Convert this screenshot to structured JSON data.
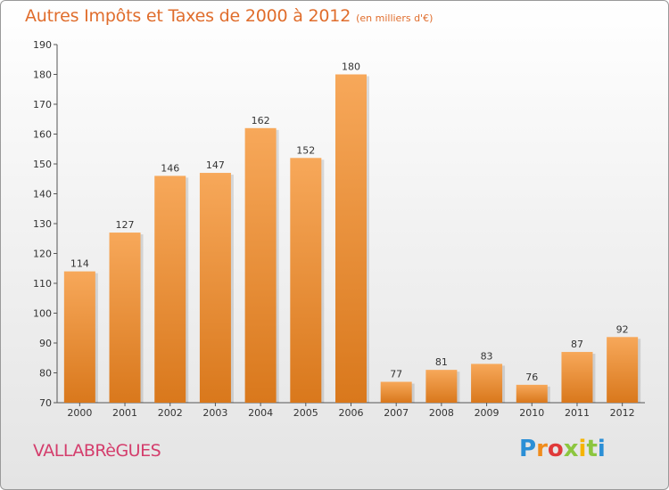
{
  "title": "Autres Impôts et Taxes de 2000 à 2012",
  "subtitle": "(en milliers d'€)",
  "commune": "VALLABRèGUES",
  "logo": {
    "letters": [
      "P",
      "r",
      "o",
      "x",
      "i",
      "t",
      "i"
    ],
    "colors": [
      "#2b8fd6",
      "#f08c1c",
      "#e03a3a",
      "#8cc63f",
      "#f5b400",
      "#8cc63f",
      "#2b8fd6"
    ]
  },
  "colors": {
    "bar_light": "#f7a85a",
    "bar_dark": "#d9781c",
    "accent": "#e06d2c"
  },
  "chart_data": {
    "type": "bar",
    "categories": [
      "2000",
      "2001",
      "2002",
      "2003",
      "2004",
      "2005",
      "2006",
      "2007",
      "2008",
      "2009",
      "2010",
      "2011",
      "2012"
    ],
    "values": [
      114,
      127,
      146,
      147,
      162,
      152,
      180,
      77,
      81,
      83,
      76,
      87,
      92
    ],
    "data_labels": [
      "114",
      "127",
      "146",
      "147",
      "162",
      "152",
      "180",
      "77",
      "81",
      "83",
      "76",
      "87",
      "92"
    ],
    "title": "Autres Impôts et Taxes de 2000 à 2012",
    "subtitle": "(en milliers d'€)",
    "xlabel": "",
    "ylabel": "",
    "ylim": [
      70,
      190
    ],
    "yticks": [
      "70",
      "80",
      "90",
      "100",
      "110",
      "120",
      "130",
      "140",
      "150",
      "160",
      "170",
      "180",
      "190"
    ],
    "grid": false
  }
}
